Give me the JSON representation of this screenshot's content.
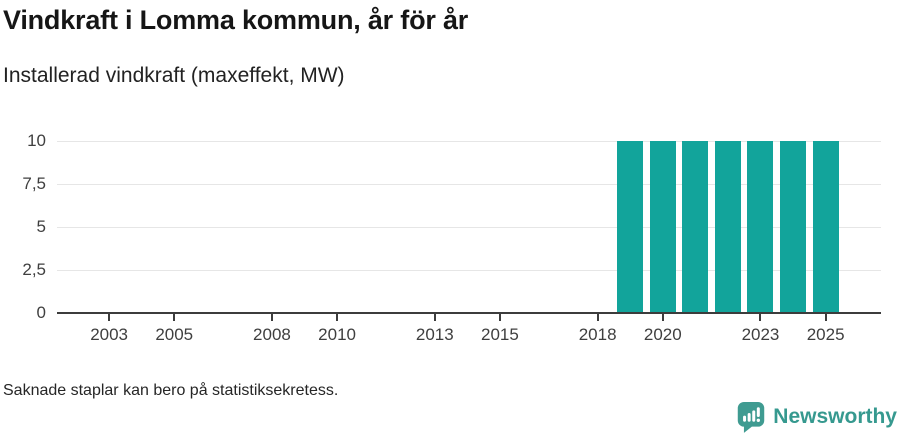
{
  "chart_data": {
    "type": "bar",
    "title": "Vindkraft i Lomma kommun, år för år",
    "subtitle": "Installerad vindkraft (maxeffekt, MW)",
    "xlabel": "",
    "ylabel": "",
    "ylim": [
      0,
      10
    ],
    "x_domain": [
      2001.4,
      2026.7
    ],
    "grid": "horizontal",
    "legend": "none",
    "y_ticks": [
      {
        "value": 0,
        "label": "0"
      },
      {
        "value": 2.5,
        "label": "2,5"
      },
      {
        "value": 5,
        "label": "5"
      },
      {
        "value": 7.5,
        "label": "7,5"
      },
      {
        "value": 10,
        "label": "10"
      }
    ],
    "x_ticks": [
      {
        "value": 2003,
        "label": "2003"
      },
      {
        "value": 2005,
        "label": "2005"
      },
      {
        "value": 2008,
        "label": "2008"
      },
      {
        "value": 2010,
        "label": "2010"
      },
      {
        "value": 2013,
        "label": "2013"
      },
      {
        "value": 2015,
        "label": "2015"
      },
      {
        "value": 2018,
        "label": "2018"
      },
      {
        "value": 2020,
        "label": "2020"
      },
      {
        "value": 2023,
        "label": "2023"
      },
      {
        "value": 2025,
        "label": "2025"
      }
    ],
    "series": [
      {
        "name": "Installerad vindkraft (maxeffekt, MW)",
        "color": "#12a49b",
        "points": [
          {
            "x": 2019,
            "y": 10
          },
          {
            "x": 2020,
            "y": 10
          },
          {
            "x": 2021,
            "y": 10
          },
          {
            "x": 2022,
            "y": 10
          },
          {
            "x": 2023,
            "y": 10
          },
          {
            "x": 2024,
            "y": 10
          },
          {
            "x": 2025,
            "y": 10
          }
        ]
      }
    ]
  },
  "footer": {
    "note": "Saknade staplar kan bero på statistiksekretess.",
    "brand_name": "Newsworthy"
  },
  "colors": {
    "bar": "#12a49b",
    "brand": "#36998f",
    "brand_icon": "#3f9b91",
    "grid_line": "#e6e6e6",
    "axis_line": "#3c3c3c",
    "tick_text": "#3f3f3f",
    "title_text": "#161616"
  }
}
